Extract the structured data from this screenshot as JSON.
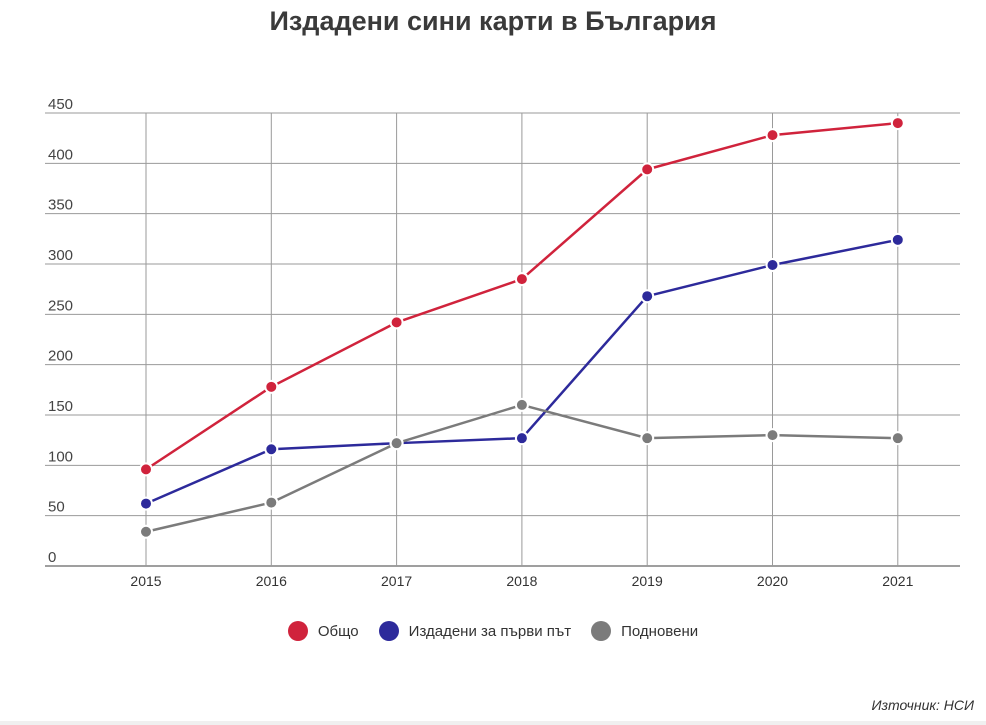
{
  "chart_data": {
    "type": "line",
    "title": "Издадени сини карти в България",
    "categories": [
      "2015",
      "2016",
      "2017",
      "2018",
      "2019",
      "2020",
      "2021"
    ],
    "ylim": [
      0,
      450
    ],
    "yticks": [
      0,
      50,
      100,
      150,
      200,
      250,
      300,
      350,
      400,
      450
    ],
    "grid": true,
    "legend_position": "bottom-center",
    "series": [
      {
        "name": "Общо",
        "color": "#d0233c",
        "values": [
          96,
          178,
          242,
          285,
          394,
          428,
          440
        ]
      },
      {
        "name": "Издадени за първи път",
        "color": "#2d2a9b",
        "values": [
          62,
          116,
          122,
          127,
          268,
          299,
          324
        ]
      },
      {
        "name": "Подновени",
        "color": "#7b7b7b",
        "values": [
          34,
          63,
          122,
          160,
          127,
          130,
          127
        ]
      }
    ]
  },
  "source": "Източник: НСИ"
}
